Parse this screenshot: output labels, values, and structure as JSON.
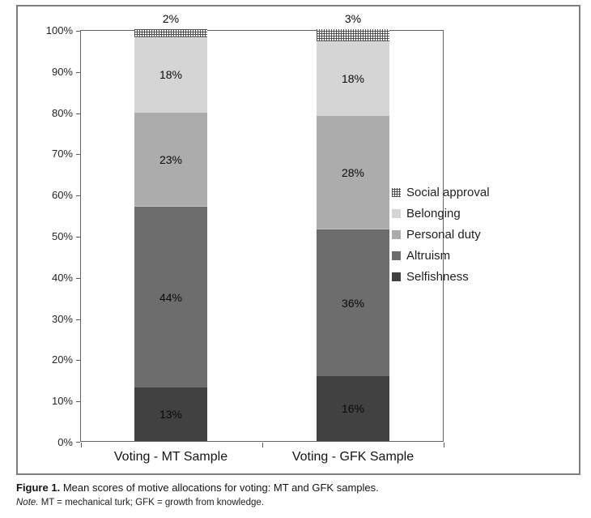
{
  "figure_caption": {
    "label": "Figure 1.",
    "text": "Mean scores of motive allocations for voting: MT and GFK samples.",
    "note_label": "Note.",
    "note_text": "MT = mechanical turk; GFK = growth from knowledge."
  },
  "chart_data": {
    "type": "bar",
    "stacked": true,
    "title": "",
    "xlabel": "",
    "ylabel": "",
    "categories": [
      "Voting - MT Sample",
      "Voting - GFK Sample"
    ],
    "series": [
      {
        "name": "Selfishness",
        "values": [
          13,
          16
        ],
        "labels": [
          "13%",
          "16%"
        ],
        "color": "#414141",
        "pattern": "solid"
      },
      {
        "name": "Altruism",
        "values": [
          44,
          36
        ],
        "labels": [
          "44%",
          "36%"
        ],
        "color": "#6d6d6d",
        "pattern": "solid"
      },
      {
        "name": "Personal duty",
        "values": [
          23,
          28
        ],
        "labels": [
          "23%",
          "28%"
        ],
        "color": "#acacac",
        "pattern": "solid"
      },
      {
        "name": "Belonging",
        "values": [
          18,
          18
        ],
        "labels": [
          "18%",
          "18%"
        ],
        "color": "#d5d5d5",
        "pattern": "solid"
      },
      {
        "name": "Social approval",
        "values": [
          2,
          3
        ],
        "labels": [
          "2%",
          "3%"
        ],
        "color": "#ffffff",
        "pattern": "crosshatch",
        "labels_outside": true
      }
    ],
    "y_ticks": [
      "0%",
      "10%",
      "20%",
      "30%",
      "40%",
      "50%",
      "60%",
      "70%",
      "80%",
      "90%",
      "100%"
    ],
    "ylim": [
      0,
      100
    ],
    "grid": false,
    "legend_position": "right-middle",
    "legend_order": [
      "Social approval",
      "Belonging",
      "Personal duty",
      "Altruism",
      "Selfishness"
    ],
    "axis_color": "#595959",
    "frame_color": "#7d7d7d"
  }
}
